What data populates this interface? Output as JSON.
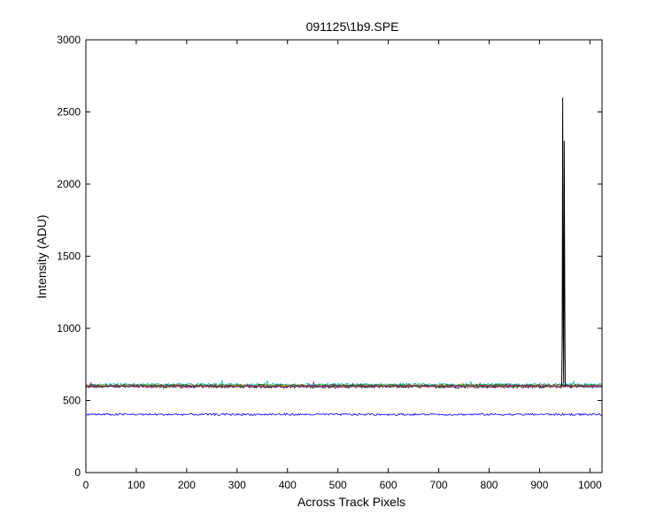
{
  "chart_data": {
    "type": "line",
    "title": "091125\\1b9.SPE",
    "xlabel": "Across Track Pixels",
    "ylabel": "Intensity (ADU)",
    "xlim": [
      0,
      1024
    ],
    "ylim": [
      0,
      3000
    ],
    "xticks": [
      0,
      100,
      200,
      300,
      400,
      500,
      600,
      700,
      800,
      900,
      1000
    ],
    "yticks": [
      0,
      500,
      1000,
      1500,
      2000,
      2500,
      3000
    ],
    "grid": false,
    "legend": "none",
    "series": [
      {
        "color": "#000000",
        "baseline": 595,
        "noise": 9
      },
      {
        "color": "#ff0000",
        "baseline": 605,
        "noise": 8
      },
      {
        "color": "#00bfbf",
        "baseline": 610,
        "noise": 10
      },
      {
        "color": "#008000",
        "baseline": 603,
        "noise": 8
      },
      {
        "color": "#bfbf00",
        "baseline": 600,
        "noise": 8
      },
      {
        "color": "#bf00bf",
        "baseline": 598,
        "noise": 7
      },
      {
        "color": "#404040",
        "baseline": 600,
        "noise": 9
      },
      {
        "color": "#0000ff",
        "baseline": 403,
        "noise": 7
      }
    ],
    "spike": {
      "color": "#000000",
      "x": [
        944,
        945,
        946,
        947,
        948,
        949,
        950,
        951,
        952
      ],
      "y": [
        600,
        950,
        2600,
        1100,
        620,
        2300,
        1300,
        600,
        600
      ]
    }
  }
}
